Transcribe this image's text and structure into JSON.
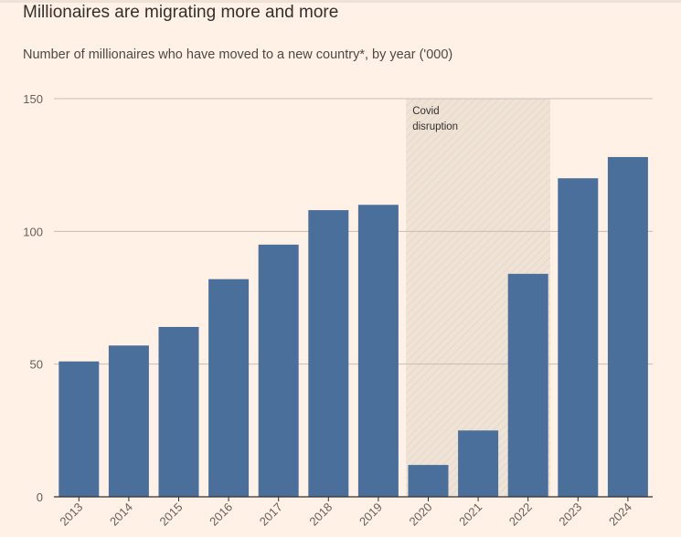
{
  "chart_data": {
    "type": "bar",
    "title": "Millionaires are migrating more and more",
    "subtitle": "Number of millionaires who have moved to a new country*, by year ('000)",
    "categories": [
      "2013",
      "2014",
      "2015",
      "2016",
      "2017",
      "2018",
      "2019",
      "2020",
      "2021",
      "2022",
      "2023",
      "2024"
    ],
    "values": [
      51,
      57,
      64,
      82,
      95,
      108,
      110,
      12,
      25,
      84,
      120,
      128
    ],
    "ylim": [
      0,
      150
    ],
    "yticks": [
      0,
      50,
      100,
      150
    ],
    "xlabel": "",
    "ylabel": "",
    "grid": true,
    "highlight_range": {
      "from": "2020",
      "to": "2022",
      "label_lines": [
        "Covid",
        "disruption"
      ]
    }
  },
  "colors": {
    "background": "#fff1e5",
    "bar": "#4a6f9b",
    "grid": "#c9bdb2",
    "baseline": "#33302e",
    "shade": "#efe3d6",
    "hatch": "#e4d5c6"
  }
}
